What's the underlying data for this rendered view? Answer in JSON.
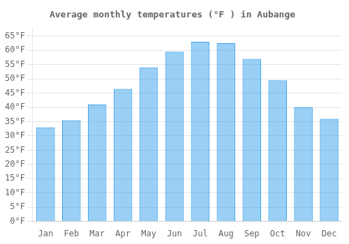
{
  "chart_data": {
    "type": "bar",
    "title": "Average monthly temperatures (°F ) in Aubange",
    "categories": [
      "Jan",
      "Feb",
      "Mar",
      "Apr",
      "May",
      "Jun",
      "Jul",
      "Aug",
      "Sep",
      "Oct",
      "Nov",
      "Dec"
    ],
    "values": [
      33,
      35.5,
      41,
      46.5,
      54,
      59.5,
      63,
      62.5,
      57,
      49.5,
      40,
      36
    ],
    "ylim": [
      0,
      68
    ],
    "yticks": [
      {
        "value": 0,
        "label": "0°F"
      },
      {
        "value": 5,
        "label": "5°F"
      },
      {
        "value": 10,
        "label": "10°F"
      },
      {
        "value": 15,
        "label": "15°F"
      },
      {
        "value": 20,
        "label": "20°F"
      },
      {
        "value": 25,
        "label": "25°F"
      },
      {
        "value": 30,
        "label": "30°F"
      },
      {
        "value": 35,
        "label": "35°F"
      },
      {
        "value": 40,
        "label": "40°F"
      },
      {
        "value": 45,
        "label": "45°F"
      },
      {
        "value": 50,
        "label": "50°F"
      },
      {
        "value": 55,
        "label": "55°F"
      },
      {
        "value": 60,
        "label": "60°F"
      },
      {
        "value": 65,
        "label": "65°F"
      }
    ],
    "grid": true
  }
}
